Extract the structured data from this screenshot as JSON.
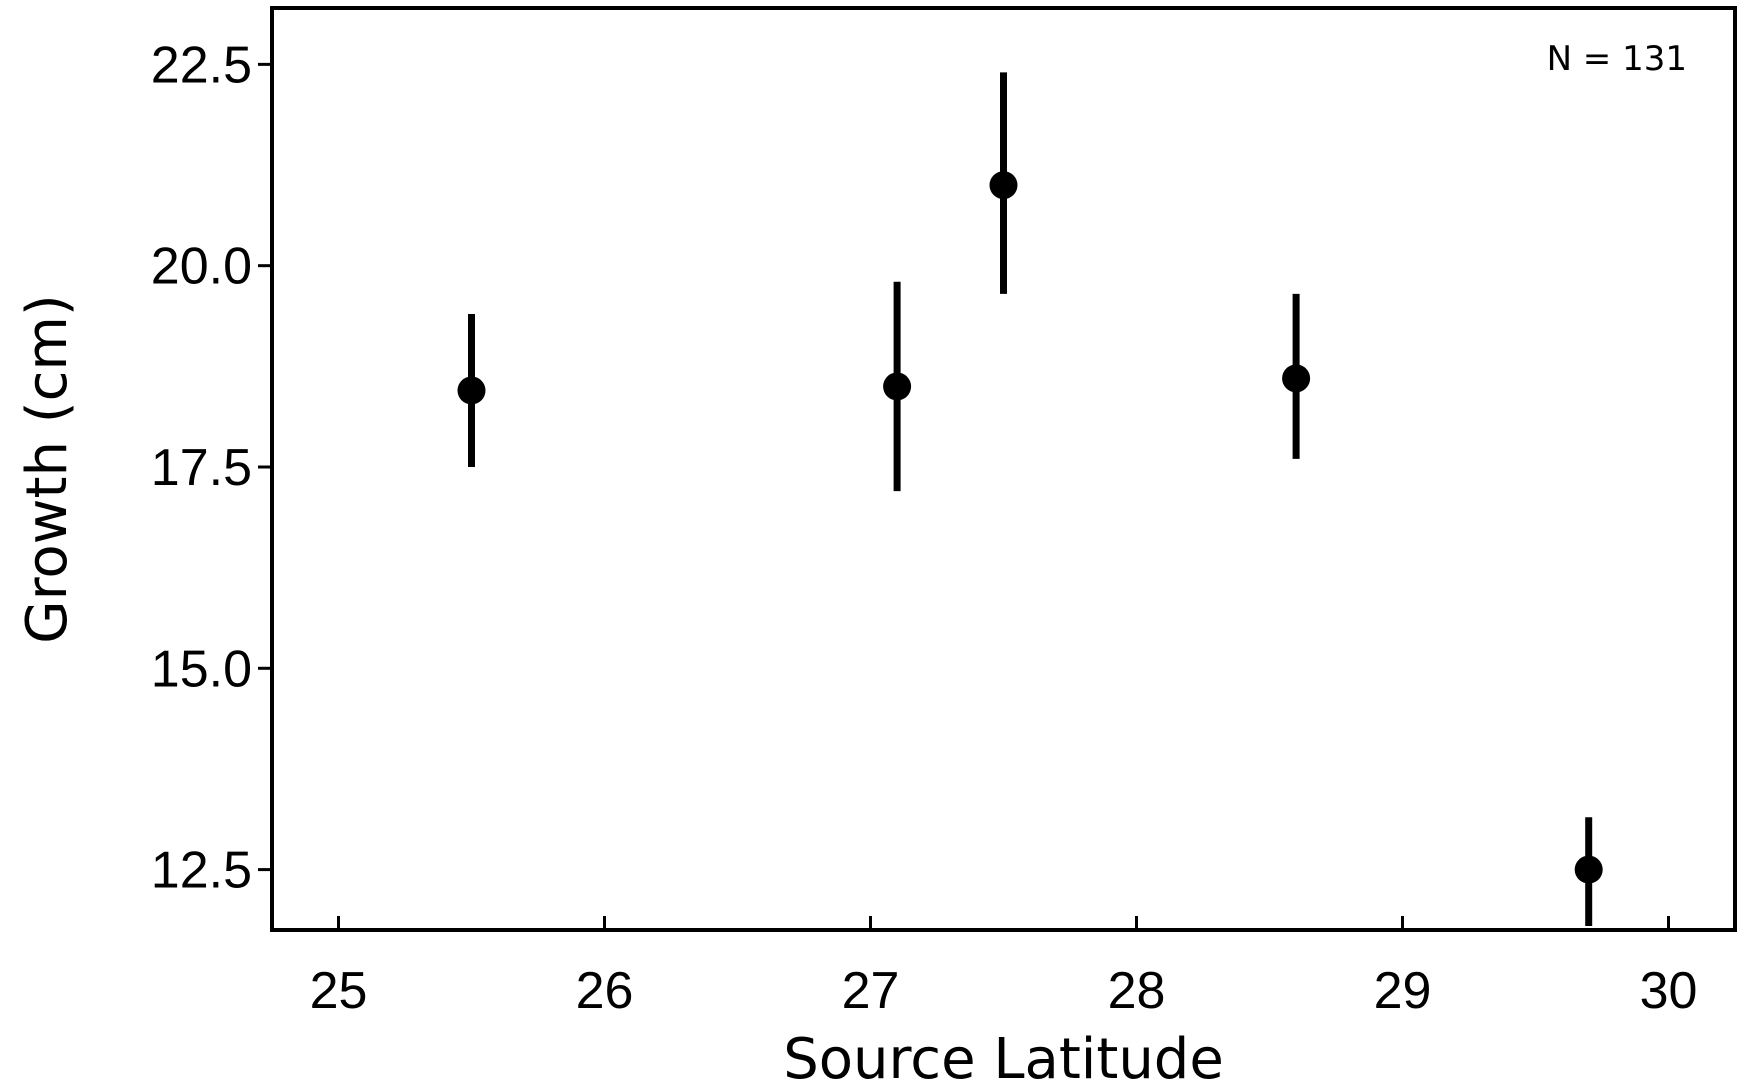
{
  "chart_data": {
    "type": "scatter",
    "xlabel": "Source Latitude",
    "ylabel": "Growth (cm)",
    "annotation": "N = 131",
    "xlim": [
      24.75,
      30.25
    ],
    "ylim": [
      11.75,
      23.2
    ],
    "x_ticks": [
      25,
      26,
      27,
      28,
      29,
      30
    ],
    "y_ticks": [
      12.5,
      15.0,
      17.5,
      20.0,
      22.5
    ],
    "grid": false,
    "series": [
      {
        "x": [
          25.5,
          27.1,
          27.5,
          28.6,
          29.7
        ],
        "y": [
          18.45,
          18.5,
          21.0,
          18.6,
          12.5
        ],
        "err_low": [
          17.5,
          17.2,
          19.65,
          17.6,
          11.8
        ],
        "err_high": [
          19.4,
          19.8,
          22.4,
          19.65,
          13.15
        ]
      }
    ],
    "colors": {
      "marker": "#000000",
      "frame": "#000000"
    }
  }
}
